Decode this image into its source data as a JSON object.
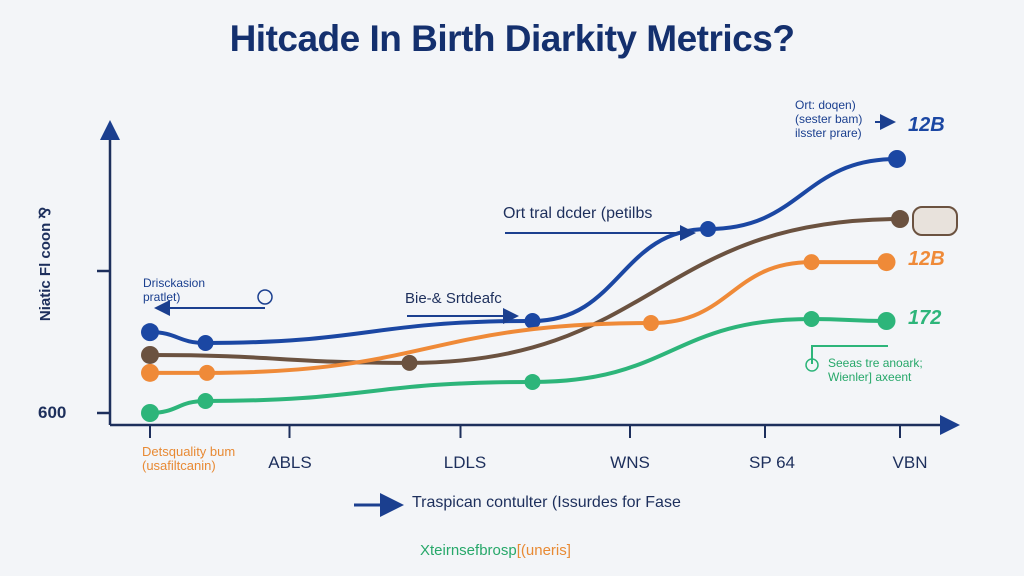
{
  "chart_data": {
    "type": "line",
    "title": "Hitcade In Birth Diarkity Metrics?",
    "ylabel": "Niatic Fl coon ⅋",
    "xlabel": "",
    "y_tick_label": "600",
    "xlim": [
      0,
      5
    ],
    "ylim": [
      0,
      100
    ],
    "x_ticks": [
      {
        "x": 0,
        "label": "Detsquality bum (usafiltcanin)"
      },
      {
        "x": 0.93,
        "label": "ABLS"
      },
      {
        "x": 2.07,
        "label": "LDLS"
      },
      {
        "x": 3.2,
        "label": "WNS"
      },
      {
        "x": 4.1,
        "label": "SP 64"
      },
      {
        "x": 5,
        "label": "VBN"
      }
    ],
    "series": [
      {
        "name": "blue",
        "color": "#1b47a3",
        "end_label": "12B",
        "points": [
          [
            0,
            27.6
          ],
          [
            0.37,
            23.9
          ],
          [
            2.55,
            31.4
          ],
          [
            3.72,
            62.8
          ],
          [
            4.98,
            86.7
          ]
        ]
      },
      {
        "name": "brown",
        "color": "#6b5240",
        "end_label": "",
        "points": [
          [
            0,
            19.8
          ],
          [
            1.73,
            17.1
          ],
          [
            5,
            66.2
          ]
        ]
      },
      {
        "name": "orange",
        "color": "#ef8a38",
        "end_label": "12B",
        "points": [
          [
            0,
            13.7
          ],
          [
            0.38,
            13.7
          ],
          [
            3.34,
            30.7
          ],
          [
            4.41,
            51.5
          ],
          [
            4.91,
            51.5
          ]
        ]
      },
      {
        "name": "green",
        "color": "#2db57a",
        "end_label": "172",
        "points": [
          [
            0,
            0
          ],
          [
            0.37,
            4.1
          ],
          [
            2.55,
            10.6
          ],
          [
            4.41,
            32.1
          ],
          [
            4.91,
            31.4
          ]
        ]
      }
    ],
    "annotations": {
      "top_right": "Ort: doqen) (sester bam) ilsster prare)",
      "mid_upper": "Ort tral dcder (petilbs",
      "mid_lower": "Bie-& Srtdeafc",
      "left": "Drisckasion pratlet)",
      "green_note": "Seeas tre anoark; Wienler] axeent"
    },
    "legend": {
      "entry": "Traspican contulter (Issurdes for Fase",
      "footer_green": "Xteirnsefbrosp",
      "footer_orange": "[(uneris]"
    }
  }
}
